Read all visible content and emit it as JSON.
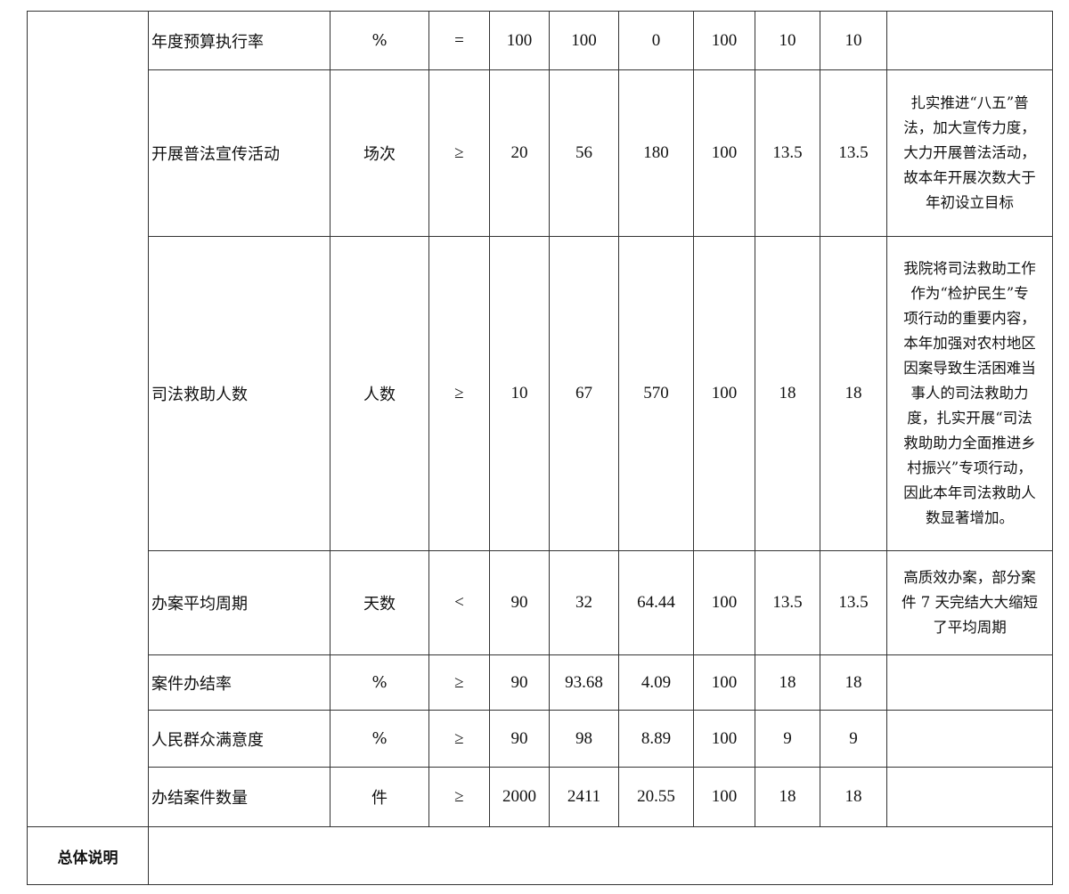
{
  "rows": [
    {
      "indicator": "年度预算执行率",
      "unit": "%",
      "op": "=",
      "target": "100",
      "actual": "100",
      "deviation": "0",
      "score_rate": "100",
      "weight": "10",
      "score": "10",
      "note": []
    },
    {
      "indicator": "开展普法宣传活动",
      "unit": "场次",
      "op": "≥",
      "target": "20",
      "actual": "56",
      "deviation": "180",
      "score_rate": "100",
      "weight": "13.5",
      "score": "13.5",
      "note": [
        "扎实推进“八五”普",
        "法，加大宣传力度，",
        "大力开展普法活动，",
        "故本年开展次数大于",
        "年初设立目标"
      ]
    },
    {
      "indicator": "司法救助人数",
      "unit": "人数",
      "op": "≥",
      "target": "10",
      "actual": "67",
      "deviation": "570",
      "score_rate": "100",
      "weight": "18",
      "score": "18",
      "note": [
        "我院将司法救助工作",
        "作为“检护民生”专",
        "项行动的重要内容，",
        "本年加强对农村地区",
        "因案导致生活困难当",
        "事人的司法救助力",
        "度，扎实开展“司法",
        "救助助力全面推进乡",
        "村振兴”专项行动，",
        "因此本年司法救助人",
        "数显著增加。"
      ]
    },
    {
      "indicator": "办案平均周期",
      "unit": "天数",
      "op": "<",
      "target": "90",
      "actual": "32",
      "deviation": "64.44",
      "score_rate": "100",
      "weight": "13.5",
      "score": "13.5",
      "note": [
        "高质效办案，部分案",
        "件 7 天完结大大缩短",
        "了平均周期"
      ]
    },
    {
      "indicator": "案件办结率",
      "unit": "%",
      "op": "≥",
      "target": "90",
      "actual": "93.68",
      "deviation": "4.09",
      "score_rate": "100",
      "weight": "18",
      "score": "18",
      "note": []
    },
    {
      "indicator": "人民群众满意度",
      "unit": "%",
      "op": "≥",
      "target": "90",
      "actual": "98",
      "deviation": "8.89",
      "score_rate": "100",
      "weight": "9",
      "score": "9",
      "note": []
    },
    {
      "indicator": "办结案件数量",
      "unit": "件",
      "op": "≥",
      "target": "2000",
      "actual": "2411",
      "deviation": "20.55",
      "score_rate": "100",
      "weight": "18",
      "score": "18",
      "note": []
    }
  ],
  "summary": {
    "label": "总体说明",
    "value": ""
  }
}
